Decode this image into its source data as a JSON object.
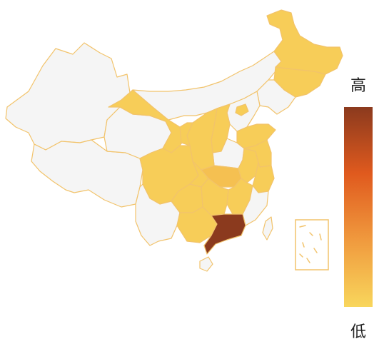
{
  "legend": {
    "high_label": "高",
    "low_label": "低",
    "gradient_colors": [
      "#8b3a1e",
      "#e05a1e",
      "#f09a3e",
      "#f8d65c"
    ]
  },
  "colors": {
    "no_data": "#f5f5f5",
    "border": "#f2c36b",
    "low": "#f8d65c",
    "high": "#8b3a1e"
  },
  "regions": [
    {
      "name": "xinjiang",
      "level": 0
    },
    {
      "name": "tibet",
      "level": 0
    },
    {
      "name": "qinghai",
      "level": 0
    },
    {
      "name": "gansu",
      "level": 0.05
    },
    {
      "name": "inner-mongolia",
      "level": 0
    },
    {
      "name": "heilongjiang",
      "level": 0.05
    },
    {
      "name": "jilin",
      "level": 0.05
    },
    {
      "name": "liaoning",
      "level": 0
    },
    {
      "name": "hebei",
      "level": 0
    },
    {
      "name": "beijing",
      "level": 0.05
    },
    {
      "name": "shanxi",
      "level": 0.05
    },
    {
      "name": "shandong",
      "level": 0.05
    },
    {
      "name": "henan",
      "level": 0
    },
    {
      "name": "shaanxi",
      "level": 0.05
    },
    {
      "name": "ningxia",
      "level": 0.05
    },
    {
      "name": "sichuan",
      "level": 0.05
    },
    {
      "name": "chongqing",
      "level": 0.05
    },
    {
      "name": "hubei",
      "level": 0.12
    },
    {
      "name": "anhui",
      "level": 0.05
    },
    {
      "name": "jiangsu",
      "level": 0.05
    },
    {
      "name": "zhejiang",
      "level": 0.05
    },
    {
      "name": "hunan",
      "level": 0.05
    },
    {
      "name": "jiangxi",
      "level": 0.05
    },
    {
      "name": "fujian",
      "level": 0
    },
    {
      "name": "guizhou",
      "level": 0.05
    },
    {
      "name": "yunnan",
      "level": 0
    },
    {
      "name": "guangxi",
      "level": 0.05
    },
    {
      "name": "guangdong",
      "level": 1
    },
    {
      "name": "hainan",
      "level": 0
    },
    {
      "name": "taiwan",
      "level": 0
    }
  ]
}
